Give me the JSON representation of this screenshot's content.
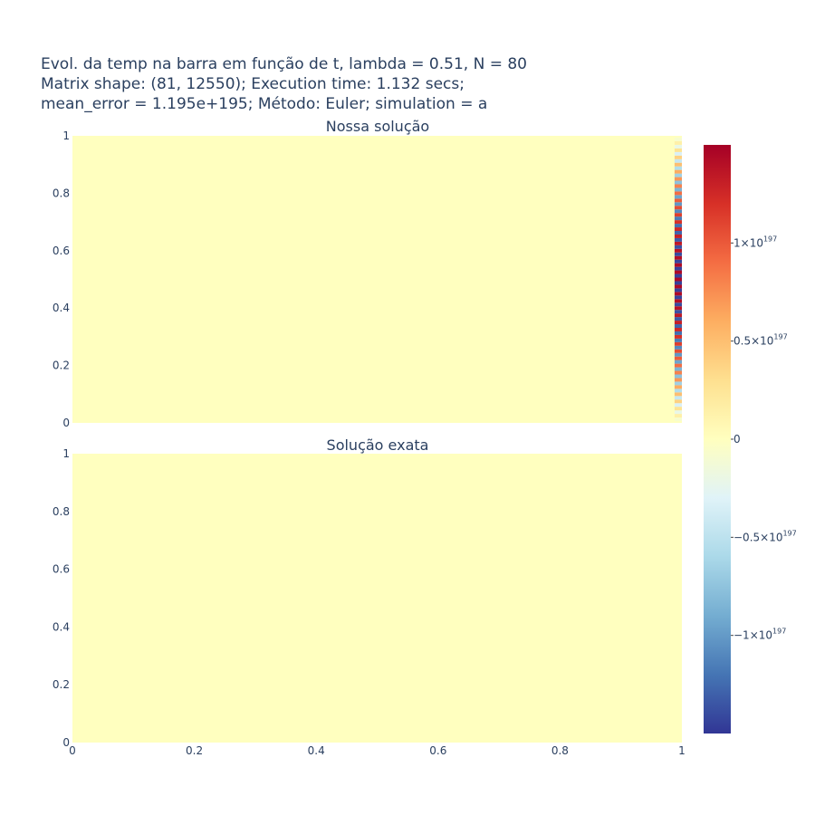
{
  "chart_data": {
    "type": "heatmap",
    "title_lines": [
      "Evol. da temp na barra em função de t, lambda = 0.51, N = 80",
      "Matrix shape: (81, 12550); Execution time: 1.132 secs;",
      "mean_error = 1.195e+195; Método: Euler; simulation = a"
    ],
    "subplots": [
      {
        "title": "Nossa solução",
        "x_range": [
          0,
          1
        ],
        "y_range": [
          0,
          1
        ],
        "y_ticks": [
          "0",
          "0.2",
          "0.4",
          "0.6",
          "0.8",
          "1"
        ],
        "show_x_ticks": false,
        "background_value": 0,
        "edge_column": {
          "x_start": 0.988,
          "x_end": 1.0,
          "rows": 81,
          "amplitude_peak": 1.45e+197,
          "pattern": "alternating sign, amplitude largest at y = 0.5, fading toward y = 0 and y = 1"
        }
      },
      {
        "title": "Solução exata",
        "x_range": [
          0,
          1
        ],
        "y_range": [
          0,
          1
        ],
        "y_ticks": [
          "0",
          "0.2",
          "0.4",
          "0.6",
          "0.8",
          "1"
        ],
        "x_ticks": [
          "0",
          "0.2",
          "0.4",
          "0.6",
          "0.8",
          "1"
        ],
        "show_x_ticks": true,
        "background_value": 0
      }
    ],
    "colorbar": {
      "colorscale": "RdYlBu reversed",
      "range": [
        -1.5e+197,
        1.5e+197
      ],
      "ticks": [
        {
          "value": 1e+197,
          "base": "1×10",
          "exp": "197"
        },
        {
          "value": 5e+196,
          "base": "0.5×10",
          "exp": "197"
        },
        {
          "value": 0,
          "base": "0",
          "exp": ""
        },
        {
          "value": -5e+196,
          "base": "−0.5×10",
          "exp": "197"
        },
        {
          "value": -1e+197,
          "base": "−1×10",
          "exp": "197"
        }
      ],
      "colors": [
        "#313695",
        "#4575b4",
        "#74add1",
        "#abd9e9",
        "#e0f3f8",
        "#ffffbf",
        "#fee090",
        "#fdae61",
        "#f46d43",
        "#d73027",
        "#a50026"
      ]
    }
  }
}
